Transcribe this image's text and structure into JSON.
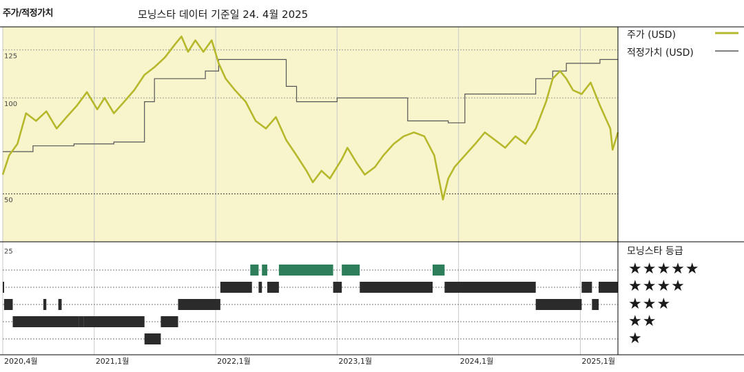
{
  "header": {
    "title": "주가/적정가치",
    "subtitle": "모닝스타 데이터 기준일 24. 4월 2025"
  },
  "colors": {
    "price": "#b5b82a",
    "fair_value": "#555555",
    "price_bg": "#f8f4cc",
    "rating_5": "#2e7d5b",
    "rating_other": "#2b2b2b"
  },
  "legend": {
    "price_label": "주가 (USD)",
    "fair_label": "적정가치 (USD)"
  },
  "ratings_title": "모닝스타 등급",
  "star_rows": [
    "★★★★★",
    "★★★★",
    "★★★",
    "★★",
    "★"
  ],
  "chart_data": [
    {
      "type": "line",
      "title": "",
      "y_ticks": [
        50,
        100,
        125
      ],
      "ylim": [
        25,
        137
      ],
      "x_ticks": [
        "2020,4월",
        "2021,1월",
        "2022,1월",
        "2023,1월",
        "2024,1월",
        "2025,1월"
      ],
      "x_tick_dates": [
        "2020-04-01",
        "2021-01-01",
        "2022-01-01",
        "2023-01-01",
        "2024-01-01",
        "2025-01-01"
      ],
      "xlim": [
        "2020-04-01",
        "2025-04-24"
      ],
      "grid": true,
      "legend_position": "right",
      "series": [
        {
          "name": "주가 (USD)",
          "points": [
            [
              "2020-04-01",
              60
            ],
            [
              "2020-04-20",
              70
            ],
            [
              "2020-05-15",
              76
            ],
            [
              "2020-06-10",
              92
            ],
            [
              "2020-07-10",
              88
            ],
            [
              "2020-08-10",
              93
            ],
            [
              "2020-09-10",
              84
            ],
            [
              "2020-10-10",
              90
            ],
            [
              "2020-11-10",
              96
            ],
            [
              "2020-12-10",
              103
            ],
            [
              "2021-01-10",
              94
            ],
            [
              "2021-02-01",
              100
            ],
            [
              "2021-03-01",
              92
            ],
            [
              "2021-04-01",
              98
            ],
            [
              "2021-05-01",
              104
            ],
            [
              "2021-06-01",
              112
            ],
            [
              "2021-07-01",
              116
            ],
            [
              "2021-08-01",
              121
            ],
            [
              "2021-09-01",
              128
            ],
            [
              "2021-09-20",
              132
            ],
            [
              "2021-10-10",
              124
            ],
            [
              "2021-11-01",
              130
            ],
            [
              "2021-11-25",
              124
            ],
            [
              "2021-12-20",
              130
            ],
            [
              "2022-01-10",
              118
            ],
            [
              "2022-01-31",
              110
            ],
            [
              "2022-02-28",
              104
            ],
            [
              "2022-04-01",
              98
            ],
            [
              "2022-05-01",
              88
            ],
            [
              "2022-06-01",
              84
            ],
            [
              "2022-07-01",
              90
            ],
            [
              "2022-08-01",
              78
            ],
            [
              "2022-09-01",
              70
            ],
            [
              "2022-10-01",
              62
            ],
            [
              "2022-10-20",
              56
            ],
            [
              "2022-11-15",
              62
            ],
            [
              "2022-12-10",
              58
            ],
            [
              "2023-01-15",
              68
            ],
            [
              "2023-02-01",
              74
            ],
            [
              "2023-03-01",
              66
            ],
            [
              "2023-03-25",
              60
            ],
            [
              "2023-04-25",
              64
            ],
            [
              "2023-05-20",
              70
            ],
            [
              "2023-06-20",
              76
            ],
            [
              "2023-07-20",
              80
            ],
            [
              "2023-08-20",
              82
            ],
            [
              "2023-09-20",
              80
            ],
            [
              "2023-10-20",
              70
            ],
            [
              "2023-11-15",
              47
            ],
            [
              "2023-12-01",
              58
            ],
            [
              "2023-12-20",
              64
            ],
            [
              "2024-01-20",
              70
            ],
            [
              "2024-02-20",
              76
            ],
            [
              "2024-03-20",
              82
            ],
            [
              "2024-04-20",
              78
            ],
            [
              "2024-05-20",
              74
            ],
            [
              "2024-06-20",
              80
            ],
            [
              "2024-07-20",
              76
            ],
            [
              "2024-08-20",
              84
            ],
            [
              "2024-09-20",
              98
            ],
            [
              "2024-10-10",
              110
            ],
            [
              "2024-11-01",
              114
            ],
            [
              "2024-11-20",
              110
            ],
            [
              "2024-12-10",
              104
            ],
            [
              "2025-01-05",
              102
            ],
            [
              "2025-02-01",
              108
            ],
            [
              "2025-03-01",
              96
            ],
            [
              "2025-04-01",
              84
            ],
            [
              "2025-04-08",
              73
            ],
            [
              "2025-04-24",
              82
            ]
          ]
        },
        {
          "name": "적정가치 (USD)",
          "points": [
            [
              "2020-04-01",
              72
            ],
            [
              "2020-07-01",
              72
            ],
            [
              "2020-07-01",
              75
            ],
            [
              "2020-11-01",
              75
            ],
            [
              "2020-11-01",
              76
            ],
            [
              "2021-03-01",
              76
            ],
            [
              "2021-03-01",
              77
            ],
            [
              "2021-06-01",
              77
            ],
            [
              "2021-06-01",
              98
            ],
            [
              "2021-07-01",
              98
            ],
            [
              "2021-07-01",
              110
            ],
            [
              "2021-12-01",
              110
            ],
            [
              "2021-12-01",
              114
            ],
            [
              "2022-01-10",
              114
            ],
            [
              "2022-01-10",
              120
            ],
            [
              "2022-08-01",
              120
            ],
            [
              "2022-08-01",
              106
            ],
            [
              "2022-09-01",
              106
            ],
            [
              "2022-09-01",
              98
            ],
            [
              "2023-01-01",
              98
            ],
            [
              "2023-01-01",
              100
            ],
            [
              "2023-08-01",
              100
            ],
            [
              "2023-08-01",
              88
            ],
            [
              "2023-12-01",
              88
            ],
            [
              "2023-12-01",
              87
            ],
            [
              "2024-01-20",
              87
            ],
            [
              "2024-01-20",
              102
            ],
            [
              "2024-08-20",
              102
            ],
            [
              "2024-08-20",
              110
            ],
            [
              "2024-10-10",
              110
            ],
            [
              "2024-10-10",
              114
            ],
            [
              "2024-11-20",
              114
            ],
            [
              "2024-11-20",
              118
            ],
            [
              "2025-03-01",
              118
            ],
            [
              "2025-03-01",
              120
            ],
            [
              "2025-04-24",
              120
            ]
          ]
        }
      ]
    },
    {
      "type": "timeline",
      "title": "모닝스타 등급",
      "ytick": [
        25
      ],
      "levels": [
        5,
        4,
        3,
        2,
        1
      ],
      "segments": [
        {
          "rating": 4,
          "start": "2020-04-01",
          "end": "2020-04-05"
        },
        {
          "rating": 3,
          "start": "2020-04-05",
          "end": "2020-05-01"
        },
        {
          "rating": 2,
          "start": "2020-05-01",
          "end": "2020-11-15"
        },
        {
          "rating": 3,
          "start": "2020-08-01",
          "end": "2020-08-10"
        },
        {
          "rating": 3,
          "start": "2020-09-15",
          "end": "2020-09-25"
        },
        {
          "rating": 2,
          "start": "2020-11-15",
          "end": "2020-12-01"
        },
        {
          "rating": 2,
          "start": "2020-12-01",
          "end": "2021-06-01"
        },
        {
          "rating": 1,
          "start": "2021-06-01",
          "end": "2021-07-20"
        },
        {
          "rating": 2,
          "start": "2021-07-20",
          "end": "2021-09-10"
        },
        {
          "rating": 3,
          "start": "2021-09-10",
          "end": "2022-01-15"
        },
        {
          "rating": 4,
          "start": "2022-01-15",
          "end": "2022-04-20"
        },
        {
          "rating": 5,
          "start": "2022-04-15",
          "end": "2022-05-10"
        },
        {
          "rating": 5,
          "start": "2022-05-20",
          "end": "2022-06-05"
        },
        {
          "rating": 4,
          "start": "2022-05-10",
          "end": "2022-05-20"
        },
        {
          "rating": 4,
          "start": "2022-06-05",
          "end": "2022-07-10"
        },
        {
          "rating": 5,
          "start": "2022-07-10",
          "end": "2022-12-20"
        },
        {
          "rating": 4,
          "start": "2022-12-20",
          "end": "2023-01-15"
        },
        {
          "rating": 5,
          "start": "2023-01-15",
          "end": "2023-03-10"
        },
        {
          "rating": 4,
          "start": "2023-03-10",
          "end": "2023-10-15"
        },
        {
          "rating": 5,
          "start": "2023-10-15",
          "end": "2023-11-20"
        },
        {
          "rating": 4,
          "start": "2023-11-20",
          "end": "2024-08-20"
        },
        {
          "rating": 3,
          "start": "2024-08-20",
          "end": "2025-01-05"
        },
        {
          "rating": 4,
          "start": "2025-01-05",
          "end": "2025-02-05"
        },
        {
          "rating": 3,
          "start": "2025-02-05",
          "end": "2025-02-25"
        },
        {
          "rating": 4,
          "start": "2025-02-25",
          "end": "2025-04-24"
        }
      ]
    }
  ]
}
